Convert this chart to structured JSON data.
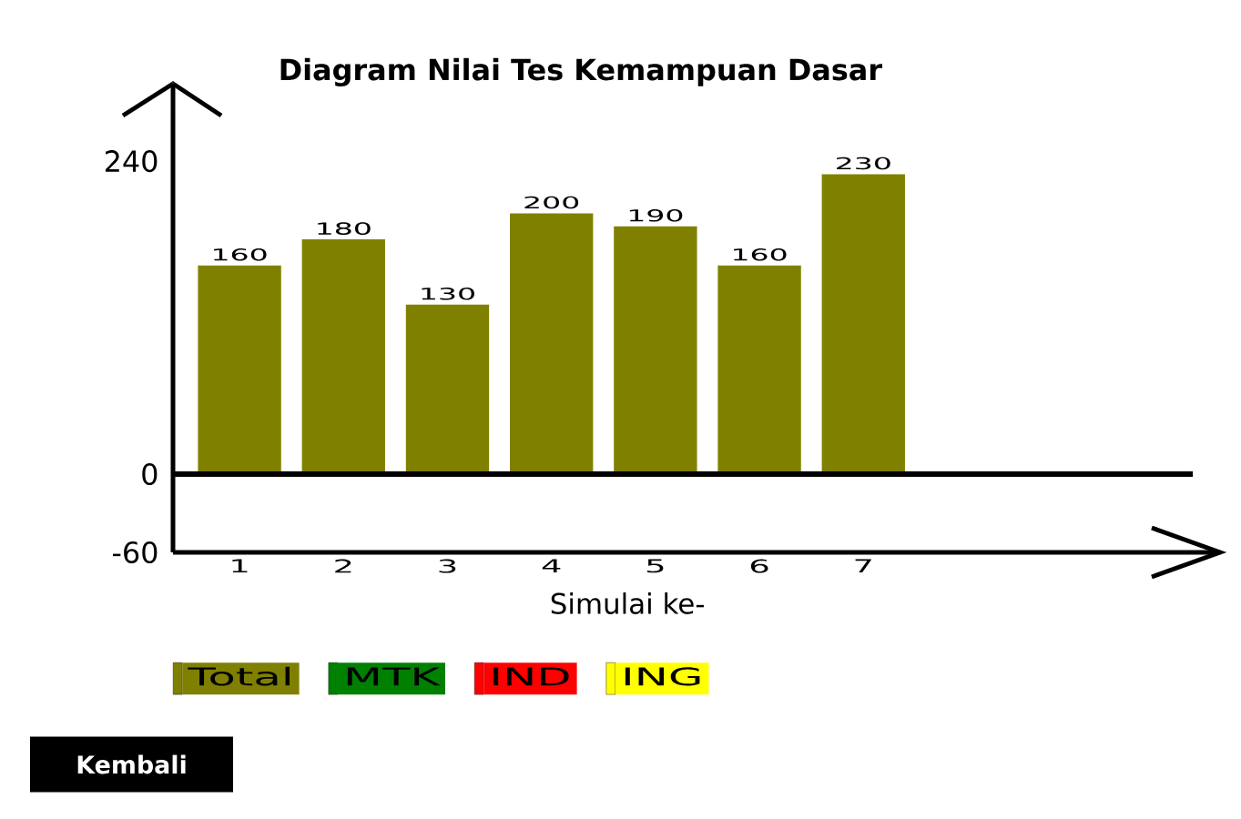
{
  "chart_data": {
    "type": "bar",
    "title": "Diagram Nilai Tes Kemampuan Dasar",
    "xlabel": "Simulai ke-",
    "categories": [
      "1",
      "2",
      "3",
      "4",
      "5",
      "6",
      "7"
    ],
    "series": [
      {
        "name": "Total",
        "color": "#808000",
        "values": [
          160,
          180,
          130,
          200,
          190,
          160,
          230
        ]
      },
      {
        "name": "MTK",
        "color": "#008000",
        "values": [
          null,
          null,
          null,
          null,
          null,
          null,
          null
        ]
      },
      {
        "name": "IND",
        "color": "#ff0000",
        "values": [
          null,
          null,
          null,
          null,
          null,
          null,
          null
        ]
      },
      {
        "name": "ING",
        "color": "#ffff00",
        "values": [
          null,
          null,
          null,
          null,
          null,
          null,
          null
        ]
      }
    ],
    "ylim": [
      -60,
      275
    ],
    "yticks": [
      -60,
      0,
      240
    ],
    "ref_lines": [
      {
        "axis": "y",
        "value": 0
      }
    ],
    "data_labels": true,
    "legend": "bottom",
    "annotations": [
      "Kembali"
    ]
  }
}
